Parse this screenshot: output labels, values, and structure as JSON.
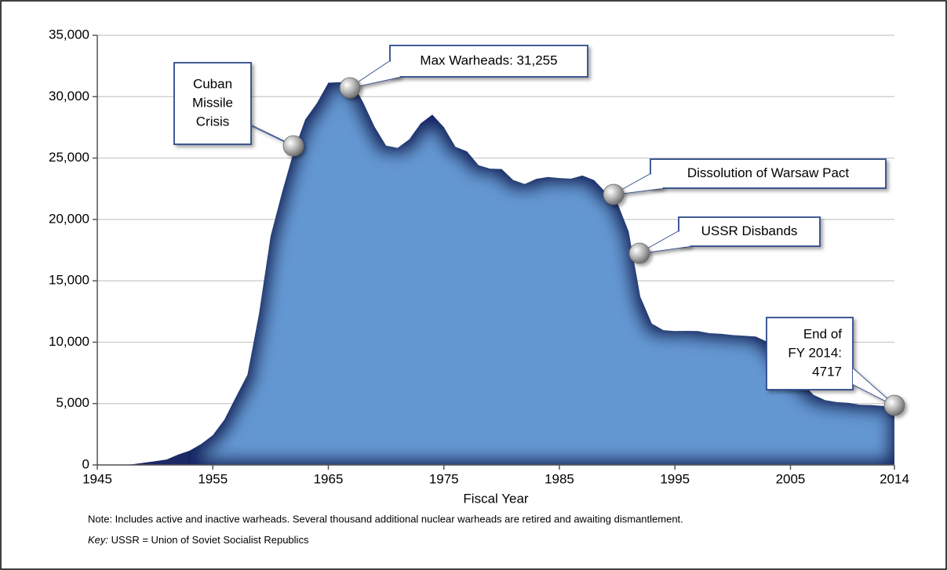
{
  "chart_data": {
    "type": "area",
    "x_label": "Fiscal Year",
    "note": "Note: Includes active and inactive warheads. Several thousand additional nuclear warheads are retired and awaiting dismantlement.",
    "key_label": "Key:",
    "key_text": " USSR = Union of Soviet Socialist Republics",
    "color": "#6497d2",
    "grid": true,
    "x": [
      1945,
      1946,
      1947,
      1948,
      1949,
      1950,
      1951,
      1952,
      1953,
      1954,
      1955,
      1956,
      1957,
      1958,
      1959,
      1960,
      1961,
      1962,
      1963,
      1964,
      1965,
      1966,
      1967,
      1968,
      1969,
      1970,
      1971,
      1972,
      1973,
      1974,
      1975,
      1976,
      1977,
      1978,
      1979,
      1980,
      1981,
      1982,
      1983,
      1984,
      1985,
      1986,
      1987,
      1988,
      1989,
      1990,
      1991,
      1992,
      1993,
      1994,
      1995,
      1996,
      1997,
      1998,
      1999,
      2000,
      2001,
      2002,
      2003,
      2004,
      2005,
      2006,
      2007,
      2008,
      2009,
      2010,
      2011,
      2012,
      2013,
      2014
    ],
    "values": [
      2,
      9,
      13,
      50,
      170,
      299,
      438,
      841,
      1169,
      1703,
      2422,
      3692,
      5543,
      7345,
      12298,
      18638,
      22229,
      25540,
      28133,
      29463,
      31139,
      31175,
      31255,
      29561,
      27552,
      26008,
      25830,
      26516,
      27835,
      28537,
      27519,
      25914,
      25542,
      24418,
      24138,
      24104,
      23208,
      22886,
      23305,
      23459,
      23368,
      23317,
      23575,
      23205,
      22217,
      21392,
      19008,
      13708,
      11511,
      10979,
      10904,
      10923,
      10903,
      10732,
      10685,
      10577,
      10526,
      10457,
      10027,
      8570,
      7368,
      6705,
      5709,
      5273,
      5113,
      5066,
      4897,
      4881,
      4804,
      4717
    ],
    "xlim": [
      1945,
      2014
    ],
    "xticks": [
      1945,
      1955,
      1965,
      1975,
      1985,
      1995,
      2005,
      2014
    ],
    "ylim": [
      0,
      35000
    ],
    "yticks": [
      {
        "value": 0,
        "label": "0"
      },
      {
        "value": 5000,
        "label": "5,000"
      },
      {
        "value": 10000,
        "label": "10,000"
      },
      {
        "value": 15000,
        "label": "15,000"
      },
      {
        "value": 20000,
        "label": "20,000"
      },
      {
        "value": 25000,
        "label": "25,000"
      },
      {
        "value": 30000,
        "label": "30,000"
      },
      {
        "value": 35000,
        "label": "35,000"
      }
    ],
    "annotations": [
      {
        "lines": [
          "Cuban",
          "Missile",
          "Crisis"
        ]
      },
      {
        "lines": [
          "Max Warheads: 31,255"
        ]
      },
      {
        "lines": [
          "Dissolution of Warsaw Pact"
        ]
      },
      {
        "lines": [
          "USSR Disbands"
        ]
      },
      {
        "lines": [
          "End of",
          "FY 2014:",
          "4717"
        ]
      }
    ]
  }
}
